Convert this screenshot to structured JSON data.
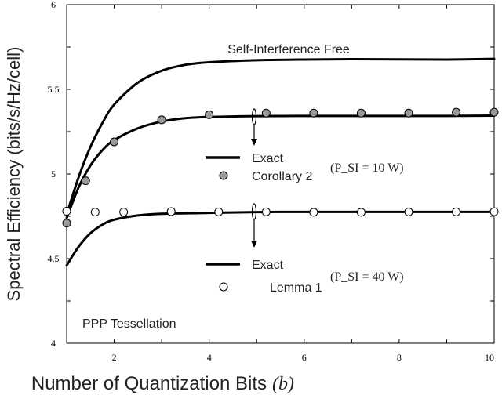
{
  "chart_data": {
    "type": "line",
    "title": "",
    "xlabel": "Number of Quantization Bits",
    "xlabel_symbol": "(b)",
    "ylabel": "Spectral Efficiency (bits/s/Hz/cell)",
    "xlim": [
      1,
      10
    ],
    "ylim": [
      4,
      6
    ],
    "xticks": [
      2,
      4,
      6,
      8,
      10
    ],
    "yticks": [
      4,
      4.5,
      5,
      5.5,
      6
    ],
    "ytick_labels": [
      "4",
      "4.5",
      "5",
      "5.5",
      "6"
    ],
    "grid": false,
    "series": [
      {
        "name": "Self-Interference Free",
        "style": "line",
        "x": [
          1,
          1.25,
          1.5,
          1.75,
          2,
          2.5,
          3,
          3.5,
          4,
          5,
          6,
          7,
          8,
          9,
          10
        ],
        "y": [
          4.76,
          4.98,
          5.16,
          5.3,
          5.41,
          5.54,
          5.61,
          5.645,
          5.66,
          5.672,
          5.676,
          5.678,
          5.677,
          5.676,
          5.68
        ]
      },
      {
        "name": "Exact",
        "style": "line",
        "x": [
          1,
          1.25,
          1.5,
          1.75,
          2,
          2.5,
          3,
          3.5,
          4,
          5,
          6,
          7,
          8,
          9,
          10
        ],
        "y": [
          4.74,
          4.92,
          5.05,
          5.14,
          5.2,
          5.27,
          5.31,
          5.33,
          5.337,
          5.342,
          5.343,
          5.343,
          5.343,
          5.343,
          5.345
        ]
      },
      {
        "name": "Corollary 2",
        "style": "markers-filled",
        "x": [
          1,
          1.4,
          2,
          3,
          4,
          5.2,
          6.2,
          7.2,
          8.2,
          9.2,
          10
        ],
        "y": [
          4.71,
          4.96,
          5.19,
          5.32,
          5.35,
          5.36,
          5.36,
          5.36,
          5.36,
          5.365,
          5.365
        ]
      },
      {
        "name": "Exact",
        "style": "line",
        "x": [
          1,
          1.25,
          1.5,
          1.75,
          2,
          2.5,
          3,
          4,
          5,
          6,
          7,
          8,
          9,
          10
        ],
        "y": [
          4.46,
          4.57,
          4.65,
          4.7,
          4.73,
          4.755,
          4.765,
          4.77,
          4.775,
          4.776,
          4.776,
          4.776,
          4.776,
          4.776
        ]
      },
      {
        "name": "Lemma 1",
        "style": "markers-open",
        "x": [
          1,
          1.6,
          2.2,
          3.2,
          4.2,
          5.2,
          6.2,
          7.2,
          8.2,
          9.2,
          10
        ],
        "y": [
          4.78,
          4.775,
          4.775,
          4.778,
          4.776,
          4.776,
          4.774,
          4.774,
          4.776,
          4.776,
          4.777
        ]
      }
    ],
    "annotations": {
      "curve_label": "Self-Interference Free",
      "group1": {
        "line_label": "Exact",
        "marker_label": "Corollary 2",
        "condition": "(P_SI = 10 W)"
      },
      "group2": {
        "line_label": "Exact",
        "marker_label": "Lemma 1",
        "condition": "(P_SI = 40 W)"
      },
      "corner_label": "PPP Tessellation"
    }
  }
}
